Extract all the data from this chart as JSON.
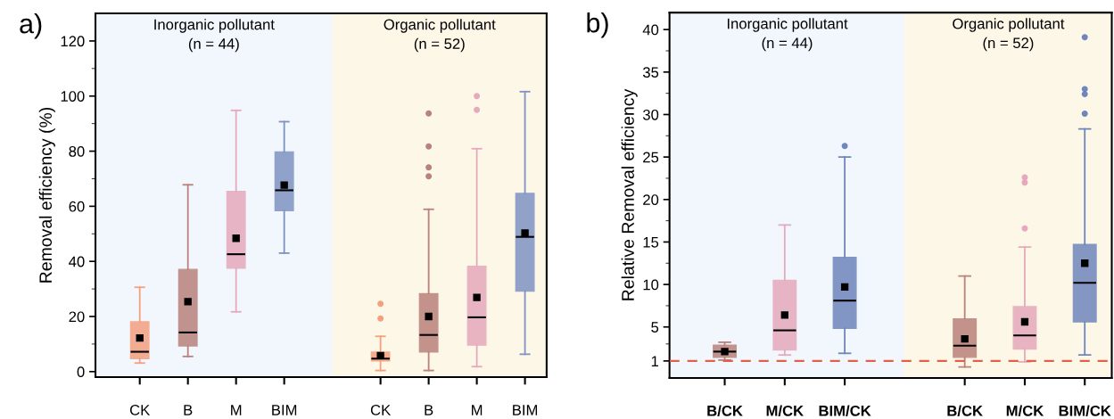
{
  "chart_data": [
    {
      "type": "box",
      "title": "a)",
      "ylabel": "Removal efficiency (%)",
      "categories": [
        "CK",
        "B",
        "M",
        "BIM",
        null,
        "CK",
        "B",
        "M",
        "BIM"
      ],
      "colors": [
        "#f4a07f",
        "#b9827b",
        "#e6a9bc",
        "#7f93c2",
        null,
        "#f4a07f",
        "#b9827b",
        "#e6a9bc",
        "#7f93c2"
      ],
      "boxes": [
        {
          "low": 3.1,
          "q1": 4.7,
          "median": 7.2,
          "q3": 18.1,
          "high": 30.6,
          "mean": 12.2
        },
        {
          "low": 5.5,
          "q1": 9.3,
          "median": 14.2,
          "q3": 37.1,
          "high": 67.8,
          "mean": 25.4
        },
        {
          "low": 21.7,
          "q1": 37.5,
          "median": 42.6,
          "q3": 65.4,
          "high": 94.8,
          "mean": 48.4
        },
        {
          "low": 43.0,
          "q1": 58.4,
          "median": 65.8,
          "q3": 79.7,
          "high": 90.7,
          "mean": 67.7
        },
        null,
        {
          "low": 0.4,
          "q1": 3.9,
          "median": 4.7,
          "q3": 7.1,
          "high": 12.8,
          "mean": 5.8,
          "outliers": [
            24.6,
            19.3
          ]
        },
        {
          "low": 0.4,
          "q1": 7.1,
          "median": 13.3,
          "q3": 28.3,
          "high": 58.9,
          "mean": 20.0,
          "outliers": [
            93.7,
            81.7,
            74.1,
            70.9
          ]
        },
        {
          "low": 1.8,
          "q1": 9.6,
          "median": 19.7,
          "q3": 38.2,
          "high": 80.9,
          "mean": 26.9,
          "outliers": [
            100,
            95
          ]
        },
        {
          "low": 6.3,
          "q1": 29.2,
          "median": 48.9,
          "q3": 64.7,
          "high": 101.6,
          "mean": 50.3
        }
      ],
      "ylim": [
        -2,
        130
      ],
      "yticks": [
        0,
        20,
        40,
        60,
        80,
        100,
        120
      ],
      "annotations": [
        "Inorganic pollutant\n(n = 44)",
        "Organic pollutant\n(n = 52)"
      ]
    },
    {
      "type": "box",
      "title": "b)",
      "ylabel": "Relative Removal efficiency",
      "categories": [
        "B/CK",
        "M/CK",
        "BIM/CK",
        null,
        "B/CK",
        "M/CK",
        "BIM/CK"
      ],
      "colors": [
        "#b9827b",
        "#e6a9bc",
        "#6f86bc",
        null,
        "#b9827b",
        "#e6a9bc",
        "#6f86bc"
      ],
      "boxes": [
        {
          "low": 1.1,
          "q1": 1.42,
          "median": 2.1,
          "q3": 2.85,
          "high": 3.2,
          "mean": 2.1
        },
        {
          "low": 1.7,
          "q1": 2.3,
          "median": 4.6,
          "q3": 10.5,
          "high": 17.0,
          "mean": 6.4
        },
        {
          "low": 1.9,
          "q1": 4.85,
          "median": 8.1,
          "q3": 13.2,
          "high": 25.0,
          "mean": 9.7,
          "outliers": [
            26.3
          ]
        },
        null,
        {
          "low": 0.3,
          "q1": 1.42,
          "median": 2.8,
          "q3": 5.96,
          "high": 11.0,
          "mean": 3.6
        },
        {
          "low": 0.9,
          "q1": 2.4,
          "median": 4.0,
          "q3": 7.4,
          "high": 14.4,
          "mean": 5.6,
          "outliers": [
            22.6,
            22.0,
            16.6
          ]
        },
        {
          "low": 1.7,
          "q1": 5.6,
          "median": 10.2,
          "q3": 14.7,
          "high": 28.3,
          "mean": 12.5,
          "outliers": [
            39.1,
            33.0,
            32.4,
            30.1
          ]
        }
      ],
      "ylim": [
        -1,
        42
      ],
      "yticks": [
        1,
        5,
        10,
        15,
        20,
        25,
        30,
        35,
        40
      ],
      "ref_lines": [
        {
          "axis": "y",
          "value": 1,
          "color": "#e0604a",
          "line_style": "dashed"
        }
      ],
      "annotations": [
        "Inorganic pollutant\n(n = 44)",
        "Organic pollutant\n(n = 52)"
      ]
    }
  ]
}
